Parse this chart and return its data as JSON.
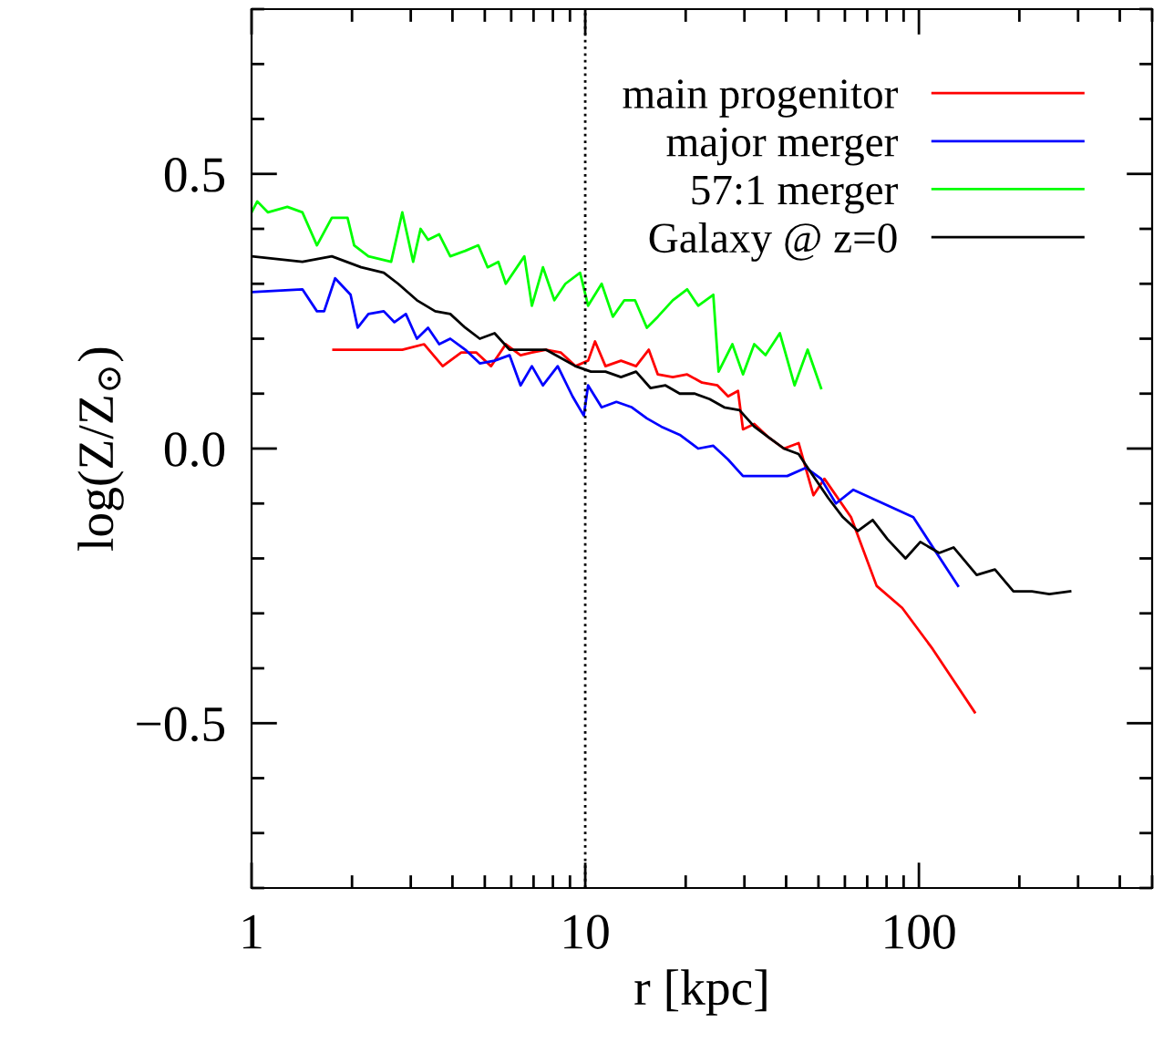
{
  "chart_data": {
    "type": "line",
    "xlabel": "r [kpc]",
    "ylabel": "log(Z/Z$_{⊙}$)",
    "log": "x",
    "xlim": [
      1,
      500
    ],
    "ylim": [
      -0.8,
      0.8
    ],
    "xticks": [
      1,
      10,
      100
    ],
    "yticks": [
      {
        "value": -0.5,
        "label": "−0.5"
      },
      {
        "value": 0,
        "label": "0.0"
      },
      0.5
    ],
    "legend": "top right",
    "grid": false,
    "ref_lines": [
      {
        "axis": "x",
        "value": 10,
        "line_style": "dotted",
        "color": "#000000"
      }
    ],
    "series": [
      {
        "name": "main progenitor",
        "color": "#ff0000",
        "x": [
          1.76,
          2.83,
          3.29,
          3.74,
          4.25,
          4.71,
          5.22,
          5.78,
          6.4,
          6.92,
          7.62,
          8.44,
          9.35,
          10.2,
          10.7,
          11.5,
          12.8,
          14.2,
          15.5,
          16.5,
          18.3,
          20.2,
          22.4,
          24.9,
          26.8,
          28.7,
          29.7,
          32.1,
          35.5,
          39.4,
          43.6,
          48.3,
          52.1,
          62.6,
          74.7,
          89.1,
          110,
          147
        ],
        "values": [
          0.18,
          0.18,
          0.19,
          0.15,
          0.175,
          0.175,
          0.15,
          0.19,
          0.17,
          0.175,
          0.18,
          0.175,
          0.15,
          0.16,
          0.195,
          0.15,
          0.16,
          0.15,
          0.18,
          0.135,
          0.13,
          0.135,
          0.12,
          0.115,
          0.095,
          0.105,
          0.035,
          0.045,
          0.02,
          0.0,
          0.01,
          -0.085,
          -0.055,
          -0.125,
          -0.25,
          -0.29,
          -0.365,
          -0.48
        ]
      },
      {
        "name": "major merger",
        "color": "#0000ff",
        "x": [
          1,
          1.42,
          1.57,
          1.65,
          1.78,
          1.98,
          2.08,
          2.24,
          2.49,
          2.68,
          2.9,
          3.13,
          3.38,
          3.65,
          3.94,
          4.37,
          4.83,
          5.35,
          5.93,
          6.4,
          6.92,
          7.47,
          8.27,
          9.16,
          9.9,
          10.2,
          11.2,
          12.4,
          13.8,
          15.3,
          16.9,
          19.2,
          21.8,
          24.2,
          26.8,
          29.7,
          33.9,
          40.3,
          45.9,
          50.9,
          56.4,
          63.6,
          96.2,
          131
        ],
        "values": [
          0.285,
          0.29,
          0.25,
          0.25,
          0.31,
          0.28,
          0.22,
          0.245,
          0.25,
          0.23,
          0.245,
          0.2,
          0.22,
          0.19,
          0.2,
          0.18,
          0.155,
          0.16,
          0.17,
          0.115,
          0.15,
          0.115,
          0.15,
          0.095,
          0.06,
          0.115,
          0.075,
          0.085,
          0.075,
          0.055,
          0.04,
          0.025,
          0.0,
          0.005,
          -0.02,
          -0.05,
          -0.05,
          -0.05,
          -0.035,
          -0.055,
          -0.1,
          -0.075,
          -0.125,
          -0.25
        ]
      },
      {
        "name": "57:1 merger",
        "color": "#00ff00",
        "x": [
          1,
          1.04,
          1.12,
          1.28,
          1.42,
          1.57,
          1.74,
          1.94,
          2.03,
          2.24,
          2.62,
          2.83,
          3.05,
          3.21,
          3.38,
          3.65,
          3.94,
          4.37,
          4.78,
          5.1,
          5.49,
          5.78,
          6.57,
          6.92,
          7.47,
          8.08,
          8.72,
          9.65,
          10.2,
          11.2,
          12.1,
          13.1,
          14.1,
          15.3,
          16.5,
          18.3,
          20.2,
          21.8,
          24.2,
          25.1,
          27.6,
          29.7,
          32.1,
          34.7,
          38.3,
          42.4,
          46.4,
          50.9
        ],
        "values": [
          0.43,
          0.45,
          0.43,
          0.44,
          0.43,
          0.37,
          0.42,
          0.42,
          0.37,
          0.35,
          0.34,
          0.43,
          0.34,
          0.4,
          0.38,
          0.39,
          0.35,
          0.36,
          0.37,
          0.33,
          0.34,
          0.3,
          0.35,
          0.26,
          0.33,
          0.27,
          0.3,
          0.32,
          0.26,
          0.3,
          0.24,
          0.27,
          0.27,
          0.22,
          0.24,
          0.27,
          0.29,
          0.26,
          0.28,
          0.14,
          0.19,
          0.135,
          0.19,
          0.17,
          0.21,
          0.115,
          0.18,
          0.11
        ]
      },
      {
        "name": "Galaxy @ z=0",
        "color": "#000000",
        "x": [
          1,
          1.42,
          1.74,
          2.13,
          2.49,
          2.75,
          3.13,
          3.55,
          3.94,
          4.37,
          4.83,
          5.35,
          5.93,
          6.57,
          7.62,
          8.44,
          9.35,
          10.4,
          11.5,
          12.8,
          14.2,
          15.7,
          17.4,
          19.2,
          21.3,
          23.6,
          26.1,
          29.0,
          32.1,
          35.5,
          39.4,
          43.6,
          47.0,
          53.5,
          59.2,
          65.6,
          72.7,
          80.5,
          91.2,
          101,
          115,
          127,
          149,
          169,
          192,
          218,
          246,
          284
        ],
        "values": [
          0.35,
          0.34,
          0.35,
          0.33,
          0.32,
          0.3,
          0.27,
          0.25,
          0.245,
          0.22,
          0.2,
          0.21,
          0.18,
          0.18,
          0.18,
          0.165,
          0.15,
          0.14,
          0.14,
          0.13,
          0.14,
          0.11,
          0.115,
          0.1,
          0.1,
          0.09,
          0.075,
          0.07,
          0.04,
          0.02,
          0.0,
          -0.01,
          -0.04,
          -0.09,
          -0.125,
          -0.15,
          -0.13,
          -0.165,
          -0.2,
          -0.17,
          -0.19,
          -0.18,
          -0.23,
          -0.22,
          -0.26,
          -0.26,
          -0.265,
          -0.26
        ]
      }
    ]
  }
}
